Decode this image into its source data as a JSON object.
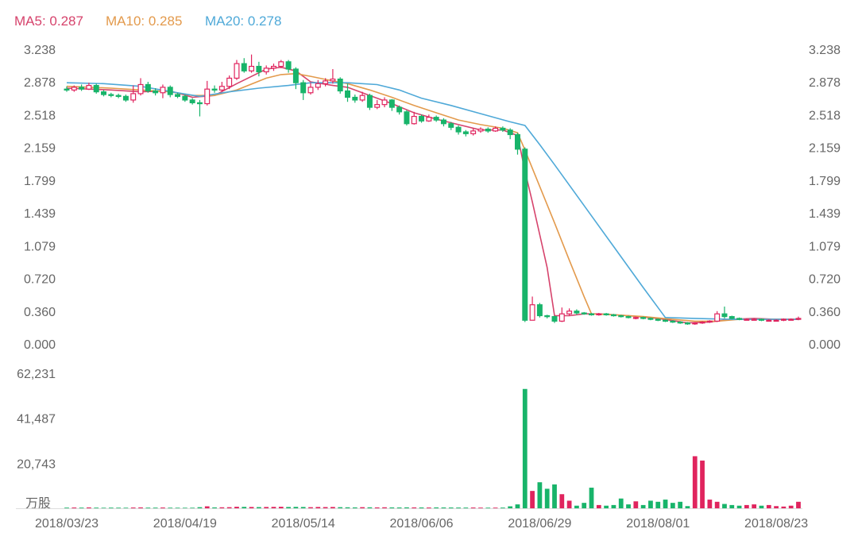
{
  "legend": {
    "ma5": {
      "text": "MA5: 0.287",
      "color": "#d6436c"
    },
    "ma10": {
      "text": "MA10: 0.285",
      "color": "#e39a4c"
    },
    "ma20": {
      "text": "MA20: 0.278",
      "color": "#4fa9d8"
    }
  },
  "colors": {
    "up": "#e0245e",
    "down": "#18b46a"
  },
  "chart_data": [
    {
      "type": "candlestick",
      "name": "price",
      "ylim": [
        0,
        3.238
      ],
      "y_ticks": [
        "3.238",
        "2.878",
        "2.518",
        "2.159",
        "1.799",
        "1.439",
        "1.079",
        "0.720",
        "0.360",
        "0.000"
      ],
      "y_tick_values": [
        3.238,
        2.878,
        2.518,
        2.159,
        1.799,
        1.439,
        1.079,
        0.72,
        0.36,
        0.0
      ],
      "x_labels": [
        "2018/03/23",
        "2018/04/19",
        "2018/05/14",
        "2018/06/06",
        "2018/06/29",
        "2018/08/01",
        "2018/08/23"
      ],
      "x_label_index": [
        0,
        16,
        32,
        48,
        64,
        80,
        96
      ],
      "candles": [
        [
          2.8,
          2.79,
          2.83,
          2.77
        ],
        [
          2.79,
          2.82,
          2.84,
          2.77
        ],
        [
          2.82,
          2.8,
          2.85,
          2.78
        ],
        [
          2.8,
          2.84,
          2.87,
          2.79
        ],
        [
          2.84,
          2.77,
          2.86,
          2.75
        ],
        [
          2.77,
          2.74,
          2.79,
          2.72
        ],
        [
          2.74,
          2.73,
          2.76,
          2.71
        ],
        [
          2.73,
          2.72,
          2.75,
          2.7
        ],
        [
          2.72,
          2.68,
          2.74,
          2.66
        ],
        [
          2.68,
          2.75,
          2.84,
          2.65
        ],
        [
          2.75,
          2.85,
          2.92,
          2.73
        ],
        [
          2.85,
          2.78,
          2.88,
          2.76
        ],
        [
          2.78,
          2.76,
          2.81,
          2.73
        ],
        [
          2.76,
          2.82,
          2.85,
          2.7
        ],
        [
          2.82,
          2.74,
          2.84,
          2.71
        ],
        [
          2.74,
          2.72,
          2.76,
          2.7
        ],
        [
          2.72,
          2.68,
          2.74,
          2.66
        ],
        [
          2.68,
          2.65,
          2.7,
          2.63
        ],
        [
          2.65,
          2.64,
          2.68,
          2.5
        ],
        [
          2.64,
          2.8,
          2.89,
          2.62
        ],
        [
          2.8,
          2.79,
          2.84,
          2.76
        ],
        [
          2.79,
          2.83,
          2.88,
          2.77
        ],
        [
          2.83,
          2.92,
          2.95,
          2.8
        ],
        [
          2.92,
          3.08,
          3.12,
          2.9
        ],
        [
          3.08,
          3.0,
          3.14,
          2.98
        ],
        [
          3.0,
          3.05,
          3.18,
          2.98
        ],
        [
          3.05,
          2.99,
          3.1,
          2.94
        ],
        [
          2.99,
          3.03,
          3.06,
          2.96
        ],
        [
          3.03,
          3.05,
          3.08,
          3.0
        ],
        [
          3.05,
          3.1,
          3.12,
          3.03
        ],
        [
          3.1,
          3.02,
          3.12,
          2.98
        ],
        [
          3.02,
          2.87,
          3.04,
          2.8
        ],
        [
          2.87,
          2.76,
          2.9,
          2.68
        ],
        [
          2.76,
          2.82,
          2.87,
          2.74
        ],
        [
          2.82,
          2.86,
          2.9,
          2.79
        ],
        [
          2.86,
          2.89,
          2.92,
          2.83
        ],
        [
          2.89,
          2.91,
          3.02,
          2.86
        ],
        [
          2.91,
          2.78,
          2.93,
          2.75
        ],
        [
          2.78,
          2.71,
          2.86,
          2.66
        ],
        [
          2.71,
          2.68,
          2.74,
          2.65
        ],
        [
          2.68,
          2.73,
          2.77,
          2.66
        ],
        [
          2.73,
          2.6,
          2.75,
          2.57
        ],
        [
          2.6,
          2.63,
          2.68,
          2.58
        ],
        [
          2.63,
          2.68,
          2.71,
          2.6
        ],
        [
          2.68,
          2.6,
          2.69,
          2.56
        ],
        [
          2.6,
          2.55,
          2.62,
          2.52
        ],
        [
          2.55,
          2.42,
          2.57,
          2.4
        ],
        [
          2.42,
          2.5,
          2.55,
          2.41
        ],
        [
          2.5,
          2.45,
          2.52,
          2.43
        ],
        [
          2.45,
          2.49,
          2.52,
          2.44
        ],
        [
          2.49,
          2.46,
          2.51,
          2.44
        ],
        [
          2.46,
          2.42,
          2.48,
          2.39
        ],
        [
          2.42,
          2.38,
          2.44,
          2.35
        ],
        [
          2.38,
          2.33,
          2.4,
          2.3
        ],
        [
          2.33,
          2.31,
          2.35,
          2.28
        ],
        [
          2.31,
          2.34,
          2.37,
          2.29
        ],
        [
          2.34,
          2.36,
          2.38,
          2.32
        ],
        [
          2.36,
          2.34,
          2.38,
          2.32
        ],
        [
          2.34,
          2.37,
          2.39,
          2.33
        ],
        [
          2.37,
          2.35,
          2.39,
          2.33
        ],
        [
          2.35,
          2.3,
          2.37,
          2.25
        ],
        [
          2.3,
          2.14,
          2.32,
          2.08
        ],
        [
          2.14,
          0.26,
          2.16,
          0.24
        ],
        [
          0.26,
          0.43,
          0.52,
          0.26
        ],
        [
          0.43,
          0.31,
          0.45,
          0.29
        ],
        [
          0.31,
          0.3,
          0.32,
          0.28
        ],
        [
          0.3,
          0.25,
          0.31,
          0.23
        ],
        [
          0.25,
          0.33,
          0.4,
          0.24
        ],
        [
          0.33,
          0.36,
          0.39,
          0.31
        ],
        [
          0.36,
          0.34,
          0.38,
          0.32
        ],
        [
          0.34,
          0.33,
          0.35,
          0.32
        ],
        [
          0.33,
          0.32,
          0.34,
          0.31
        ],
        [
          0.32,
          0.33,
          0.34,
          0.31
        ],
        [
          0.33,
          0.32,
          0.34,
          0.31
        ],
        [
          0.32,
          0.31,
          0.33,
          0.3
        ],
        [
          0.31,
          0.3,
          0.32,
          0.29
        ],
        [
          0.3,
          0.29,
          0.31,
          0.28
        ],
        [
          0.29,
          0.29,
          0.3,
          0.27
        ],
        [
          0.29,
          0.28,
          0.3,
          0.27
        ],
        [
          0.28,
          0.27,
          0.29,
          0.26
        ],
        [
          0.27,
          0.26,
          0.28,
          0.25
        ],
        [
          0.26,
          0.25,
          0.27,
          0.24
        ],
        [
          0.25,
          0.24,
          0.26,
          0.23
        ],
        [
          0.24,
          0.23,
          0.25,
          0.22
        ],
        [
          0.23,
          0.22,
          0.24,
          0.21
        ],
        [
          0.22,
          0.23,
          0.24,
          0.21
        ],
        [
          0.23,
          0.24,
          0.25,
          0.22
        ],
        [
          0.24,
          0.25,
          0.26,
          0.23
        ],
        [
          0.25,
          0.33,
          0.36,
          0.24
        ],
        [
          0.33,
          0.3,
          0.41,
          0.28
        ],
        [
          0.3,
          0.28,
          0.31,
          0.27
        ],
        [
          0.28,
          0.27,
          0.29,
          0.26
        ],
        [
          0.27,
          0.27,
          0.28,
          0.26
        ],
        [
          0.27,
          0.27,
          0.28,
          0.26
        ],
        [
          0.27,
          0.26,
          0.28,
          0.25
        ],
        [
          0.26,
          0.26,
          0.27,
          0.25
        ],
        [
          0.26,
          0.26,
          0.27,
          0.25
        ],
        [
          0.26,
          0.27,
          0.28,
          0.25
        ],
        [
          0.27,
          0.27,
          0.28,
          0.26
        ],
        [
          0.27,
          0.28,
          0.3,
          0.26
        ]
      ],
      "ma_series": [
        {
          "name": "MA5",
          "color": "#d6436c",
          "values": [
            [
              0,
              2.81
            ],
            [
              6,
              2.79
            ],
            [
              10,
              2.77
            ],
            [
              14,
              2.78
            ],
            [
              17,
              2.71
            ],
            [
              20,
              2.73
            ],
            [
              23,
              2.86
            ],
            [
              27,
              3.02
            ],
            [
              29,
              3.04
            ],
            [
              31,
              3.0
            ],
            [
              33,
              2.88
            ],
            [
              36,
              2.84
            ],
            [
              38,
              2.82
            ],
            [
              41,
              2.73
            ],
            [
              44,
              2.64
            ],
            [
              47,
              2.54
            ],
            [
              50,
              2.47
            ],
            [
              53,
              2.41
            ],
            [
              56,
              2.35
            ],
            [
              59,
              2.35
            ],
            [
              61,
              2.29
            ],
            [
              62,
              1.9
            ],
            [
              63,
              1.56
            ],
            [
              64,
              1.2
            ],
            [
              65,
              0.84
            ],
            [
              66,
              0.31
            ],
            [
              68,
              0.31
            ],
            [
              70,
              0.33
            ],
            [
              72,
              0.33
            ],
            [
              76,
              0.31
            ],
            [
              80,
              0.28
            ],
            [
              84,
              0.23
            ],
            [
              87,
              0.24
            ],
            [
              90,
              0.27
            ],
            [
              93,
              0.28
            ],
            [
              96,
              0.27
            ],
            [
              99,
              0.27
            ]
          ]
        },
        {
          "name": "MA10",
          "color": "#e39a4c",
          "values": [
            [
              0,
              2.83
            ],
            [
              6,
              2.81
            ],
            [
              10,
              2.79
            ],
            [
              14,
              2.77
            ],
            [
              17,
              2.73
            ],
            [
              20,
              2.73
            ],
            [
              23,
              2.79
            ],
            [
              27,
              2.92
            ],
            [
              29,
              2.96
            ],
            [
              31,
              2.97
            ],
            [
              33,
              2.94
            ],
            [
              36,
              2.89
            ],
            [
              38,
              2.86
            ],
            [
              41,
              2.79
            ],
            [
              44,
              2.71
            ],
            [
              47,
              2.62
            ],
            [
              50,
              2.54
            ],
            [
              53,
              2.46
            ],
            [
              56,
              2.41
            ],
            [
              59,
              2.37
            ],
            [
              61,
              2.32
            ],
            [
              62,
              2.13
            ],
            [
              63,
              1.93
            ],
            [
              64,
              1.73
            ],
            [
              65,
              1.53
            ],
            [
              66,
              1.33
            ],
            [
              68,
              0.92
            ],
            [
              70,
              0.52
            ],
            [
              71,
              0.33
            ],
            [
              74,
              0.32
            ],
            [
              78,
              0.3
            ],
            [
              82,
              0.27
            ],
            [
              85,
              0.25
            ],
            [
              88,
              0.25
            ],
            [
              91,
              0.27
            ],
            [
              94,
              0.27
            ],
            [
              99,
              0.27
            ]
          ]
        },
        {
          "name": "MA20",
          "color": "#4fa9d8",
          "values": [
            [
              0,
              2.87
            ],
            [
              5,
              2.86
            ],
            [
              10,
              2.83
            ],
            [
              15,
              2.76
            ],
            [
              18,
              2.72
            ],
            [
              22,
              2.77
            ],
            [
              26,
              2.81
            ],
            [
              30,
              2.84
            ],
            [
              33,
              2.87
            ],
            [
              38,
              2.87
            ],
            [
              42,
              2.85
            ],
            [
              45,
              2.79
            ],
            [
              48,
              2.7
            ],
            [
              52,
              2.62
            ],
            [
              56,
              2.53
            ],
            [
              60,
              2.44
            ],
            [
              62,
              2.4
            ],
            [
              64,
              2.19
            ],
            [
              66,
              1.97
            ],
            [
              70,
              1.52
            ],
            [
              74,
              1.07
            ],
            [
              78,
              0.62
            ],
            [
              80,
              0.4
            ],
            [
              81,
              0.29
            ],
            [
              85,
              0.28
            ],
            [
              90,
              0.27
            ],
            [
              95,
              0.27
            ],
            [
              99,
              0.27
            ]
          ]
        }
      ]
    },
    {
      "type": "bar",
      "name": "volume",
      "unit_label": "万股",
      "ylim": [
        0,
        62231
      ],
      "y_ticks": [
        "62,231",
        "41,487",
        "20,743"
      ],
      "y_tick_values": [
        62231,
        41487,
        20743
      ],
      "values": [
        300,
        350,
        300,
        400,
        300,
        250,
        300,
        280,
        260,
        350,
        400,
        300,
        300,
        350,
        280,
        260,
        250,
        260,
        500,
        900,
        400,
        450,
        500,
        700,
        650,
        600,
        550,
        600,
        650,
        700,
        600,
        650,
        600,
        500,
        600,
        550,
        600,
        500,
        450,
        400,
        500,
        450,
        400,
        450,
        400,
        380,
        420,
        400,
        380,
        350,
        400,
        380,
        360,
        340,
        320,
        350,
        300,
        280,
        300,
        320,
        900,
        1800,
        55000,
        8000,
        12000,
        9000,
        11000,
        6500,
        3500,
        1200,
        2500,
        9500,
        1500,
        1200,
        1500,
        4500,
        1800,
        3200,
        1500,
        3500,
        3000,
        4000,
        2500,
        3000,
        1000,
        24000,
        22000,
        4000,
        3000,
        2000,
        1500,
        1200,
        1500,
        1800,
        1200,
        1500,
        1000,
        800,
        1200,
        3000
      ]
    }
  ]
}
